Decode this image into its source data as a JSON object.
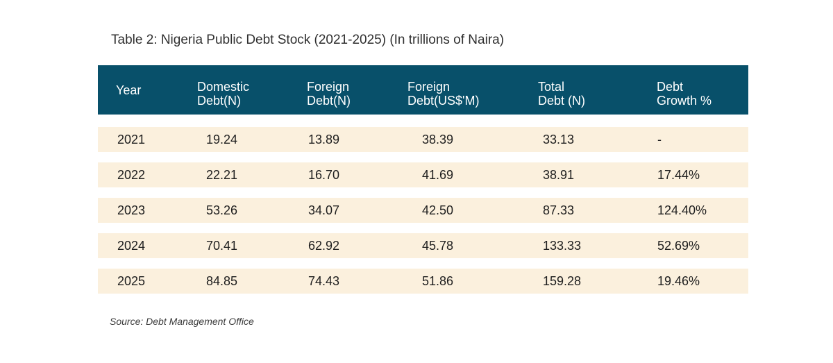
{
  "title": "Table 2: Nigeria Public Debt Stock (2021-2025) (In trillions of Naira)",
  "colors": {
    "header_bg": "#08506a",
    "row_bg": "#fbf0dd",
    "header_text": "#ffffff"
  },
  "table": {
    "headers": [
      {
        "line1": "Year",
        "line2": ""
      },
      {
        "line1": "Domestic",
        "line2": "Debt(N)"
      },
      {
        "line1": "Foreign",
        "line2": "Debt(N)"
      },
      {
        "line1": "Foreign",
        "line2": "Debt(US$'M)"
      },
      {
        "line1": "Total",
        "line2": "Debt (N)"
      },
      {
        "line1": "Debt",
        "line2": "Growth %"
      }
    ],
    "rows": [
      [
        "2021",
        "19.24",
        "13.89",
        "38.39",
        "33.13",
        "-"
      ],
      [
        "2022",
        "22.21",
        "16.70",
        "41.69",
        "38.91",
        "17.44%"
      ],
      [
        "2023",
        "53.26",
        "34.07",
        "42.50",
        "87.33",
        "124.40%"
      ],
      [
        "2024",
        "70.41",
        "62.92",
        "45.78",
        "133.33",
        "52.69%"
      ],
      [
        "2025",
        "84.85",
        "74.43",
        "51.86",
        "159.28",
        "19.46%"
      ]
    ]
  },
  "source": "Source: Debt Management Office"
}
